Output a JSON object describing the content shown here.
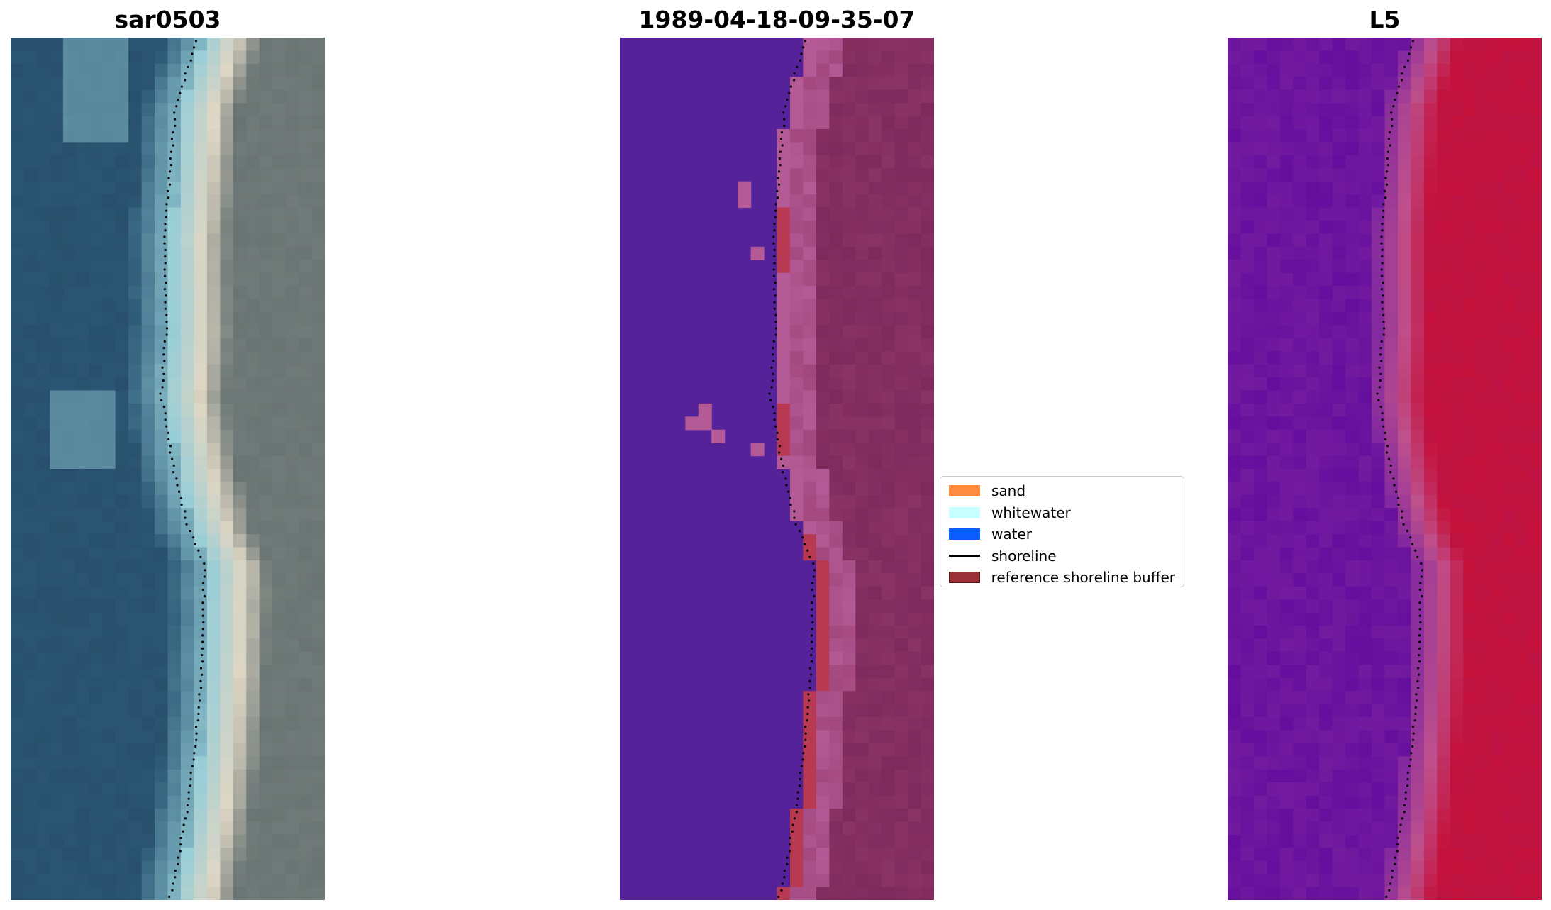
{
  "panels": [
    {
      "title": "sar0503",
      "kind": "rgb"
    },
    {
      "title": "1989-04-18-09-35-07",
      "kind": "classified"
    },
    {
      "title": "L5",
      "kind": "index"
    }
  ],
  "legend": {
    "items": [
      {
        "label": "sand",
        "color": "#ff8c3f",
        "type": "patch"
      },
      {
        "label": "whitewater",
        "color": "#c8ffff",
        "type": "patch"
      },
      {
        "label": "water",
        "color": "#0a5cff",
        "type": "patch"
      },
      {
        "label": "shoreline",
        "color": "#000000",
        "type": "line"
      },
      {
        "label": "reference shoreline buffer",
        "color": "#9a3038",
        "type": "patch"
      }
    ]
  },
  "colors": {
    "ocean_rgb": "#2d5a78",
    "beach_rgb": "#d8d2bf",
    "land_rgb": "#707a78",
    "class_water": "#55229a",
    "class_land": "#7e2a5c",
    "class_buffer": "#b83a52",
    "index_low": "#6a10a0",
    "index_high": "#c0103a"
  }
}
